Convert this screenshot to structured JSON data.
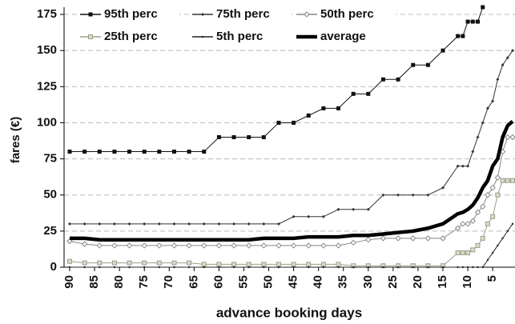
{
  "chart_data": {
    "type": "line",
    "xlabel": "advance booking days",
    "ylabel": "fares (€)",
    "xlim": [
      90,
      1
    ],
    "ylim": [
      0,
      180
    ],
    "xticks": [
      90,
      85,
      80,
      75,
      70,
      65,
      60,
      55,
      50,
      45,
      40,
      35,
      30,
      25,
      20,
      15,
      10,
      5
    ],
    "yticks": [
      0,
      25,
      50,
      75,
      100,
      125,
      150,
      175
    ],
    "grid": true,
    "x": [
      90,
      87,
      84,
      81,
      78,
      75,
      72,
      69,
      66,
      63,
      60,
      57,
      54,
      51,
      48,
      45,
      42,
      39,
      36,
      33,
      30,
      27,
      24,
      21,
      18,
      15,
      12,
      11,
      10,
      9,
      8,
      7,
      6,
      5,
      4,
      3,
      2,
      1
    ],
    "series": [
      {
        "name": "95th perc",
        "color": "#111111",
        "marker": "square-filled",
        "values": [
          80,
          80,
          80,
          80,
          80,
          80,
          80,
          80,
          80,
          80,
          90,
          90,
          90,
          90,
          100,
          100,
          105,
          110,
          110,
          120,
          120,
          130,
          130,
          140,
          140,
          150,
          160,
          160,
          170,
          170,
          170,
          180,
          null,
          null,
          null,
          null,
          null,
          null
        ]
      },
      {
        "name": "75th perc",
        "color": "#333333",
        "marker": "diamond-small",
        "values": [
          30,
          30,
          30,
          30,
          30,
          30,
          30,
          30,
          30,
          30,
          30,
          30,
          30,
          30,
          30,
          35,
          35,
          35,
          40,
          40,
          40,
          50,
          50,
          50,
          50,
          55,
          70,
          70,
          70,
          80,
          90,
          100,
          110,
          115,
          130,
          140,
          145,
          150
        ]
      },
      {
        "name": "50th perc",
        "color": "#888888",
        "marker": "diamond-open",
        "values": [
          18,
          16,
          15,
          15,
          15,
          15,
          15,
          15,
          15,
          15,
          15,
          15,
          15,
          15,
          15,
          15,
          15,
          15,
          15,
          17,
          19,
          20,
          20,
          20,
          20,
          20,
          27,
          30,
          30,
          32,
          38,
          42,
          50,
          55,
          62,
          80,
          90,
          90
        ]
      },
      {
        "name": "25th perc",
        "color": "#9aa08a",
        "marker": "square-open",
        "values": [
          4,
          3,
          3,
          3,
          3,
          3,
          3,
          3,
          3,
          2,
          2,
          2,
          2,
          2,
          2,
          2,
          2,
          2,
          2,
          1,
          1,
          1,
          1,
          1,
          1,
          1,
          10,
          10,
          10,
          12,
          15,
          20,
          30,
          35,
          50,
          60,
          60,
          60
        ]
      },
      {
        "name": "5th perc",
        "color": "#222222",
        "marker": "dot",
        "values": [
          0,
          0,
          0,
          0,
          0,
          0,
          0,
          0,
          0,
          0,
          0,
          0,
          0,
          0,
          0,
          0,
          0,
          0,
          0,
          0,
          0,
          0,
          0,
          0,
          0,
          0,
          0,
          0,
          0,
          0,
          0,
          0,
          5,
          10,
          15,
          20,
          25,
          30
        ]
      },
      {
        "name": "average",
        "color": "#000000",
        "marker": "none",
        "values": [
          20,
          20,
          19,
          19,
          19,
          19,
          19,
          19,
          19,
          19,
          19,
          19,
          19,
          20,
          20,
          20,
          21,
          21,
          21,
          22,
          22,
          23,
          24,
          25,
          27,
          30,
          37,
          38,
          40,
          43,
          48,
          55,
          60,
          70,
          75,
          90,
          98,
          101
        ]
      }
    ]
  }
}
